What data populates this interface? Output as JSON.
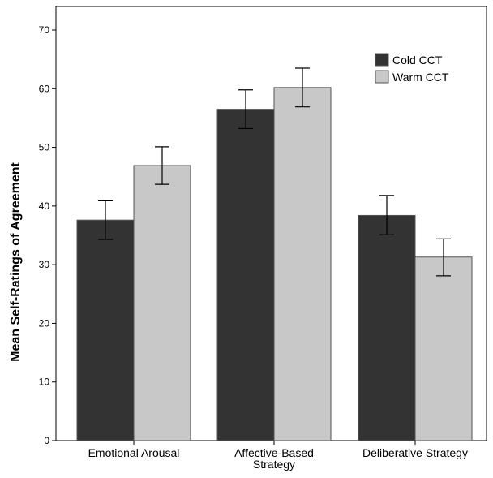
{
  "chart_data": {
    "type": "bar",
    "title": "",
    "xlabel": "",
    "ylabel": "Mean Self-Ratings of Agreement",
    "ylim": [
      0,
      72
    ],
    "yticks": [
      0,
      10,
      20,
      30,
      40,
      50,
      60,
      70
    ],
    "grid": false,
    "legend_position": "top-right",
    "categories": [
      [
        "Emotional Arousal"
      ],
      [
        "Affective-Based",
        "Strategy"
      ],
      [
        "Deliberative  Strategy"
      ]
    ],
    "series": [
      {
        "name": "Cold CCT",
        "color": "#333333",
        "values": [
          37.6,
          56.5,
          38.4
        ],
        "error_low": [
          34.3,
          53.2,
          35.1
        ],
        "error_high": [
          40.9,
          59.8,
          41.8
        ]
      },
      {
        "name": "Warm CCT",
        "color": "#c8c8c8",
        "values": [
          46.9,
          60.2,
          31.3
        ],
        "error_low": [
          43.7,
          56.9,
          28.1
        ],
        "error_high": [
          50.1,
          63.5,
          34.4
        ]
      }
    ]
  }
}
